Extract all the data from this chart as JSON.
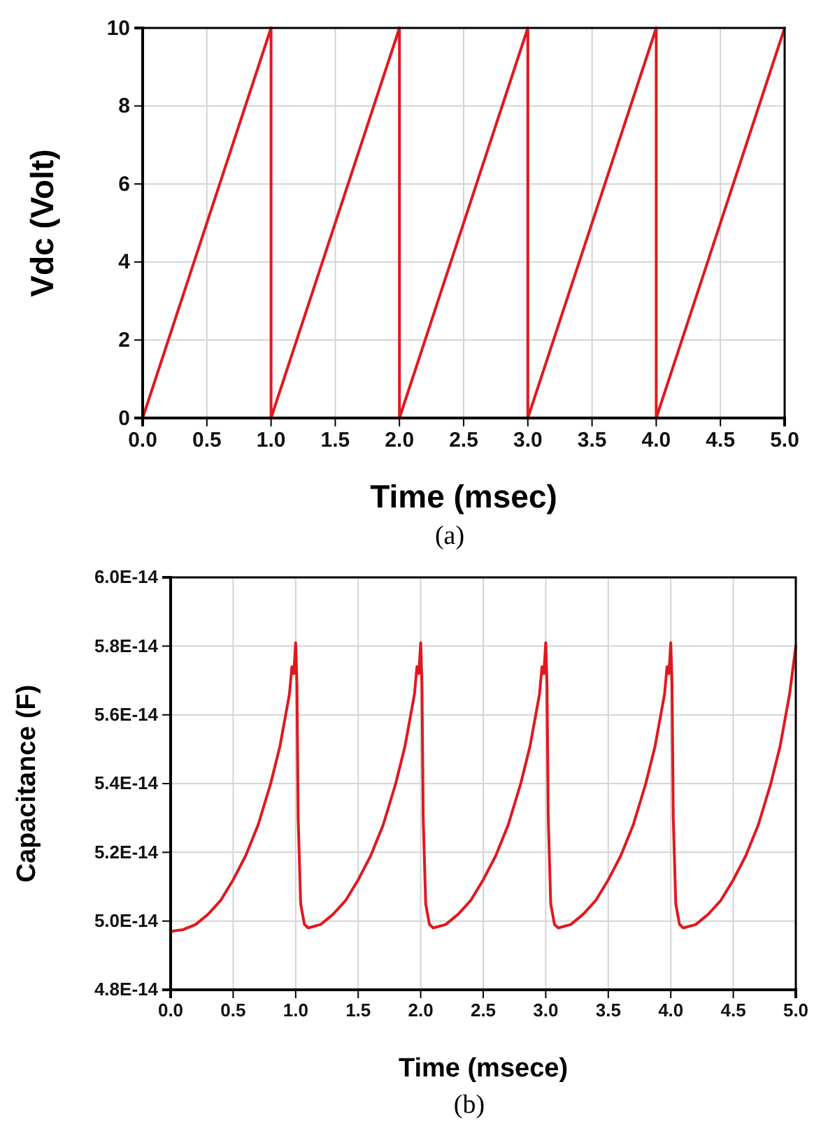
{
  "chart_data": [
    {
      "type": "line",
      "xlabel": "Time (msec)",
      "ylabel": "Vdc (Volt)",
      "annotations": [
        "(a)"
      ],
      "grid": true,
      "line_style": "solid",
      "xlim": [
        0,
        5
      ],
      "xticks": [
        {
          "value": 0,
          "label": "0.0"
        },
        0.5,
        {
          "value": 1,
          "label": "1.0"
        },
        1.5,
        {
          "value": 2,
          "label": "2.0"
        },
        2.5,
        {
          "value": 3,
          "label": "3.0"
        },
        3.5,
        {
          "value": 4,
          "label": "4.0"
        },
        4.5,
        {
          "value": 5,
          "label": "5.0"
        }
      ],
      "ylim": [
        0,
        10
      ],
      "yticks": [
        0,
        2,
        4,
        6,
        8,
        10
      ],
      "series": [
        {
          "color": "#e0191e",
          "x": [
            0,
            1,
            1,
            2,
            2,
            3,
            3,
            4,
            4,
            5
          ],
          "values": [
            0,
            10,
            0,
            10,
            0,
            10,
            0,
            10,
            0,
            10
          ]
        }
      ]
    },
    {
      "type": "line",
      "xlabel": "Time (msece)",
      "ylabel": "Capacitance (F)",
      "annotations": [
        "(b)"
      ],
      "grid": true,
      "line_style": "solid",
      "xlim": [
        0,
        5
      ],
      "xticks": [
        {
          "value": 0,
          "label": "0.0"
        },
        0.5,
        {
          "value": 1,
          "label": "1.0"
        },
        1.5,
        {
          "value": 2,
          "label": "2.0"
        },
        2.5,
        {
          "value": 3,
          "label": "3.0"
        },
        3.5,
        {
          "value": 4,
          "label": "4.0"
        },
        4.5,
        {
          "value": 5,
          "label": "5.0"
        }
      ],
      "ylim": [
        4.8e-14,
        6e-14
      ],
      "yticks": [
        {
          "value": 4.8e-14,
          "label": "4.8E-14"
        },
        {
          "value": 5e-14,
          "label": "5.0E-14"
        },
        {
          "value": 5.2e-14,
          "label": "5.2E-14"
        },
        {
          "value": 5.4e-14,
          "label": "5.4E-14"
        },
        {
          "value": 5.6e-14,
          "label": "5.6E-14"
        },
        {
          "value": 5.8e-14,
          "label": "5.8E-14"
        },
        {
          "value": 6e-14,
          "label": "6.0E-14"
        }
      ],
      "series": [
        {
          "color": "#e0191e",
          "x": [
            0,
            0.1,
            0.2,
            0.3,
            0.4,
            0.5,
            0.6,
            0.7,
            0.8,
            0.875,
            0.95,
            0.97,
            0.985,
            1.0,
            1.01,
            1.02,
            1.04,
            1.07,
            1.1,
            1.2,
            1.3,
            1.4,
            1.5,
            1.6,
            1.7,
            1.8,
            1.875,
            1.95,
            1.97,
            1.985,
            2.0,
            2.01,
            2.02,
            2.04,
            2.07,
            2.1,
            2.2,
            2.3,
            2.4,
            2.5,
            2.6,
            2.7,
            2.8,
            2.875,
            2.95,
            2.97,
            2.985,
            3.0,
            3.01,
            3.02,
            3.04,
            3.07,
            3.1,
            3.2,
            3.3,
            3.4,
            3.5,
            3.6,
            3.7,
            3.8,
            3.875,
            3.95,
            3.97,
            3.985,
            4.0,
            4.01,
            4.02,
            4.04,
            4.07,
            4.1,
            4.2,
            4.3,
            4.4,
            4.5,
            4.6,
            4.7,
            4.8,
            4.875,
            4.95,
            5.0
          ],
          "values": [
            4.97e-14,
            4.975e-14,
            4.99e-14,
            5.02e-14,
            5.06e-14,
            5.12e-14,
            5.19e-14,
            5.28e-14,
            5.4e-14,
            5.51e-14,
            5.66e-14,
            5.74e-14,
            5.72e-14,
            5.81e-14,
            5.69e-14,
            5.3e-14,
            5.05e-14,
            4.99e-14,
            4.98e-14,
            4.99e-14,
            5.02e-14,
            5.06e-14,
            5.12e-14,
            5.19e-14,
            5.28e-14,
            5.4e-14,
            5.51e-14,
            5.66e-14,
            5.74e-14,
            5.72e-14,
            5.81e-14,
            5.69e-14,
            5.3e-14,
            5.05e-14,
            4.99e-14,
            4.98e-14,
            4.99e-14,
            5.02e-14,
            5.06e-14,
            5.12e-14,
            5.19e-14,
            5.28e-14,
            5.4e-14,
            5.51e-14,
            5.66e-14,
            5.74e-14,
            5.72e-14,
            5.81e-14,
            5.69e-14,
            5.3e-14,
            5.05e-14,
            4.99e-14,
            4.98e-14,
            4.99e-14,
            5.02e-14,
            5.06e-14,
            5.12e-14,
            5.19e-14,
            5.28e-14,
            5.4e-14,
            5.51e-14,
            5.66e-14,
            5.74e-14,
            5.72e-14,
            5.81e-14,
            5.69e-14,
            5.3e-14,
            5.05e-14,
            4.99e-14,
            4.98e-14,
            4.99e-14,
            5.02e-14,
            5.06e-14,
            5.12e-14,
            5.19e-14,
            5.28e-14,
            5.4e-14,
            5.51e-14,
            5.66e-14,
            5.8e-14
          ]
        }
      ]
    }
  ]
}
